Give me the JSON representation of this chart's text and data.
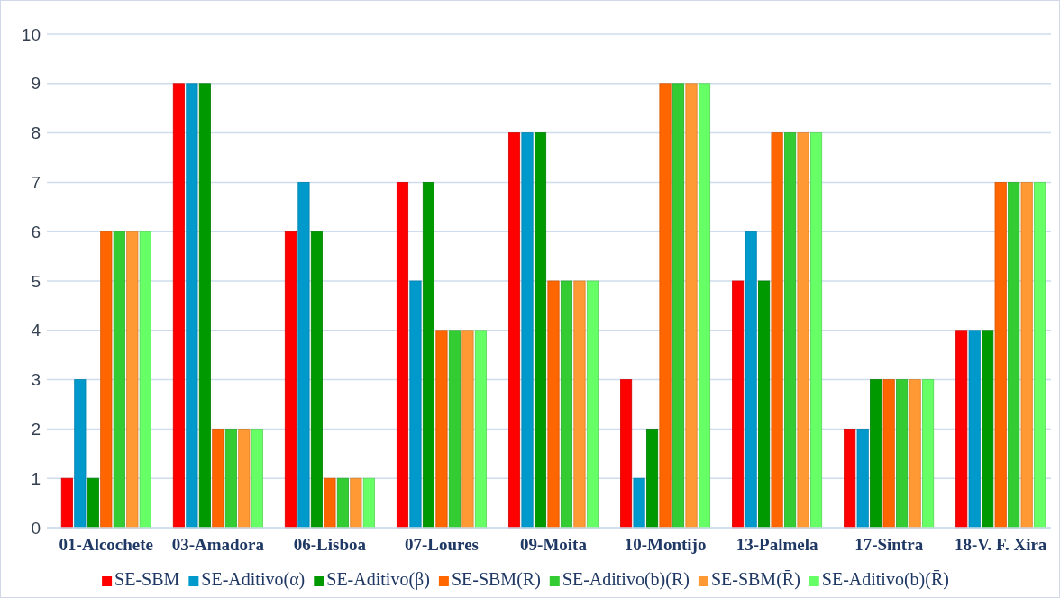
{
  "chart_data": {
    "type": "bar",
    "categories": [
      "01-Alcochete",
      "03-Amadora",
      "06-Lisboa",
      "07-Loures",
      "09-Moita",
      "10-Montijo",
      "13-Palmela",
      "17-Sintra",
      "18-V. F. Xira"
    ],
    "series": [
      {
        "name": "SE-SBM",
        "color": "#ff0000",
        "values": [
          1,
          9,
          6,
          7,
          8,
          3,
          5,
          2,
          4
        ]
      },
      {
        "name": "SE-Aditivo(α)",
        "color": "#0099cc",
        "values": [
          3,
          9,
          7,
          5,
          8,
          1,
          6,
          2,
          4
        ]
      },
      {
        "name": "SE-Aditivo(β)",
        "color": "#009900",
        "values": [
          1,
          9,
          6,
          7,
          8,
          2,
          5,
          3,
          4
        ]
      },
      {
        "name": "SE-SBM(R)",
        "color": "#ff6600",
        "values": [
          6,
          2,
          1,
          4,
          5,
          9,
          8,
          3,
          7
        ]
      },
      {
        "name": "SE-Aditivo(b)(R)",
        "color": "#33cc33",
        "values": [
          6,
          2,
          1,
          4,
          5,
          9,
          8,
          3,
          7
        ]
      },
      {
        "name": "SE-SBM(R̄)",
        "color": "#ff9933",
        "values": [
          6,
          2,
          1,
          4,
          5,
          9,
          8,
          3,
          7
        ]
      },
      {
        "name": "SE-Aditivo(b)(R̄)",
        "color": "#66ff66",
        "values": [
          6,
          2,
          1,
          4,
          5,
          9,
          8,
          3,
          7
        ]
      }
    ],
    "ylim": [
      0,
      10
    ],
    "yticks": [
      0,
      1,
      2,
      3,
      4,
      5,
      6,
      7,
      8,
      9,
      10
    ],
    "grid": "y",
    "legend": "bottom"
  }
}
